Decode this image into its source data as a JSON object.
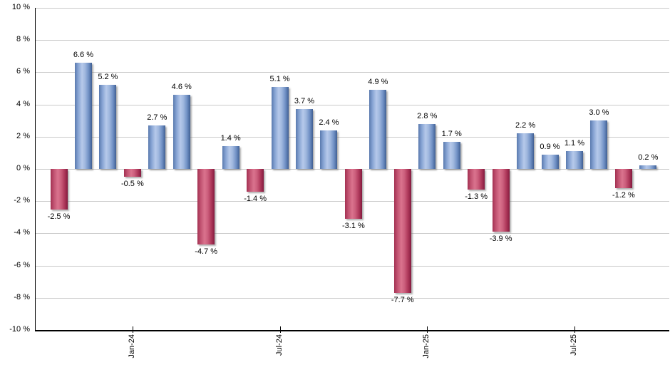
{
  "chart_data": {
    "type": "bar",
    "title": "",
    "unit": "%",
    "values": [
      -2.5,
      6.6,
      5.2,
      -0.5,
      2.7,
      4.6,
      -4.7,
      1.4,
      -1.4,
      5.1,
      3.7,
      2.4,
      -3.1,
      4.9,
      -7.7,
      2.8,
      1.7,
      -1.3,
      -3.9,
      2.2,
      0.9,
      1.1,
      3.0,
      -1.2,
      0.2
    ],
    "bar_labels": [
      "-2.5 %",
      "6.6 %",
      "5.2 %",
      "-0.5 %",
      "2.7 %",
      "4.6 %",
      "-4.7 %",
      "1.4 %",
      "-1.4 %",
      "5.1 %",
      "3.7 %",
      "2.4 %",
      "-3.1 %",
      "4.9 %",
      "-7.7 %",
      "2.8 %",
      "1.7 %",
      "-1.3 %",
      "-3.9 %",
      "2.2 %",
      "0.9 %",
      "1.1 %",
      "3.0 %",
      "-1.2 %",
      "0.2 %"
    ],
    "x_ticks": [
      {
        "bar_index": 3,
        "label": "Jan-24"
      },
      {
        "bar_index": 9,
        "label": "Jul-24"
      },
      {
        "bar_index": 15,
        "label": "Jan-25"
      },
      {
        "bar_index": 21,
        "label": "Jul-25"
      }
    ],
    "y_ticks": [
      {
        "value": 10,
        "label": "10 %"
      },
      {
        "value": 8,
        "label": "8 %"
      },
      {
        "value": 6,
        "label": "6 %"
      },
      {
        "value": 4,
        "label": "4 %"
      },
      {
        "value": 2,
        "label": "2 %"
      },
      {
        "value": 0,
        "label": "0 %"
      },
      {
        "value": -2,
        "label": "-2 %"
      },
      {
        "value": -4,
        "label": "-4 %"
      },
      {
        "value": -6,
        "label": "-6 %"
      },
      {
        "value": -8,
        "label": "-8 %"
      },
      {
        "value": -10,
        "label": "-10 %"
      }
    ],
    "ylim": [
      -10,
      10
    ],
    "grid": true,
    "legend_position": "none",
    "colors": {
      "positive_bar": "#7ba0d0",
      "positive_bar_light": "#b6c9ea",
      "positive_bar_dark": "#3f5d8f",
      "negative_bar": "#c24a68",
      "negative_bar_light": "#da738e",
      "negative_bar_dark": "#7e1b3c",
      "gridline": "#c9c9c9",
      "axis": "#000000",
      "label_text": "#000000",
      "background": "#ffffff"
    }
  }
}
